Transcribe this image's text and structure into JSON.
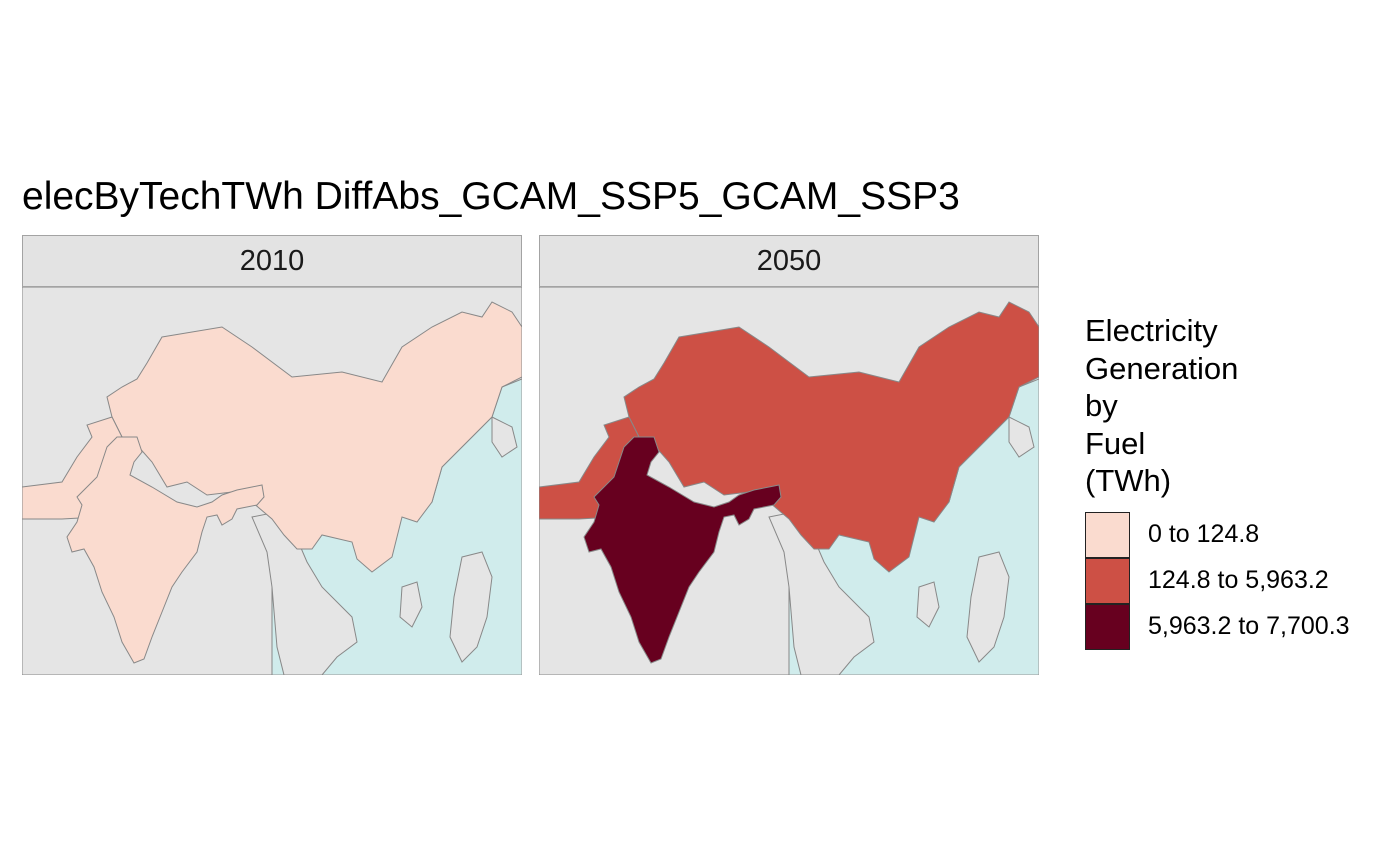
{
  "title": "elecByTechTWh DiffAbs_GCAM_SSP5_GCAM_SSP3",
  "colors": {
    "ocean": "#d0ecec",
    "land_other": "#e5e5e5",
    "border": "#888888",
    "strip_bg": "#e3e3e3"
  },
  "panels": [
    {
      "label": "2010",
      "china_class": 0,
      "india_class": 0,
      "pakistan_class": 0
    },
    {
      "label": "2050",
      "china_class": 1,
      "india_class": 2,
      "pakistan_class": 1
    }
  ],
  "legend": {
    "title_lines": [
      "Electricity",
      "Generation",
      "by",
      "Fuel",
      "(TWh)"
    ],
    "items": [
      {
        "label": "0 to 124.8",
        "color": "#fadbcf"
      },
      {
        "label": "124.8 to 5,963.2",
        "color": "#cd5045"
      },
      {
        "label": "5,963.2 to 7,700.3",
        "color": "#67001f"
      }
    ]
  }
}
